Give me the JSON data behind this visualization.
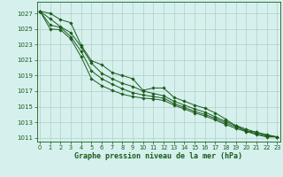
{
  "title": "Graphe pression niveau de la mer (hPa)",
  "background_color": "#d5f0ed",
  "grid_color": "#b0d0c8",
  "line_color": "#1a5c1a",
  "x_values": [
    0,
    1,
    2,
    3,
    4,
    5,
    6,
    7,
    8,
    9,
    10,
    11,
    12,
    13,
    14,
    15,
    16,
    17,
    18,
    19,
    20,
    21,
    22,
    23
  ],
  "ylim": [
    1010.5,
    1028.5
  ],
  "xlim": [
    -0.3,
    23.3
  ],
  "yticks": [
    1011,
    1013,
    1015,
    1017,
    1019,
    1021,
    1023,
    1025,
    1027
  ],
  "series": [
    [
      1027.3,
      1027.0,
      1026.2,
      1025.8,
      1022.9,
      1020.9,
      1020.4,
      1019.4,
      1019.0,
      1018.6,
      1017.1,
      1017.4,
      1017.4,
      1016.2,
      1015.7,
      1015.2,
      1014.8,
      1014.2,
      1013.4,
      1012.5,
      1011.9,
      1011.7,
      1011.3,
      1011.1
    ],
    [
      1027.3,
      1026.3,
      1025.3,
      1024.5,
      1022.7,
      1020.6,
      1019.3,
      1018.6,
      1018.0,
      1017.6,
      1017.0,
      1016.7,
      1016.4,
      1015.7,
      1015.2,
      1014.7,
      1014.3,
      1013.7,
      1013.1,
      1012.6,
      1012.1,
      1011.7,
      1011.4,
      1011.1
    ],
    [
      1027.3,
      1025.5,
      1025.2,
      1024.0,
      1022.1,
      1019.6,
      1018.6,
      1017.9,
      1017.3,
      1016.8,
      1016.5,
      1016.3,
      1016.1,
      1015.4,
      1014.9,
      1014.4,
      1014.0,
      1013.5,
      1012.9,
      1012.4,
      1011.9,
      1011.5,
      1011.2,
      1011.1
    ],
    [
      1027.3,
      1025.0,
      1024.9,
      1023.7,
      1021.4,
      1018.6,
      1017.7,
      1017.1,
      1016.6,
      1016.3,
      1016.1,
      1016.0,
      1015.8,
      1015.2,
      1014.7,
      1014.2,
      1013.8,
      1013.3,
      1012.7,
      1012.2,
      1011.8,
      1011.4,
      1011.1,
      1011.1
    ]
  ]
}
